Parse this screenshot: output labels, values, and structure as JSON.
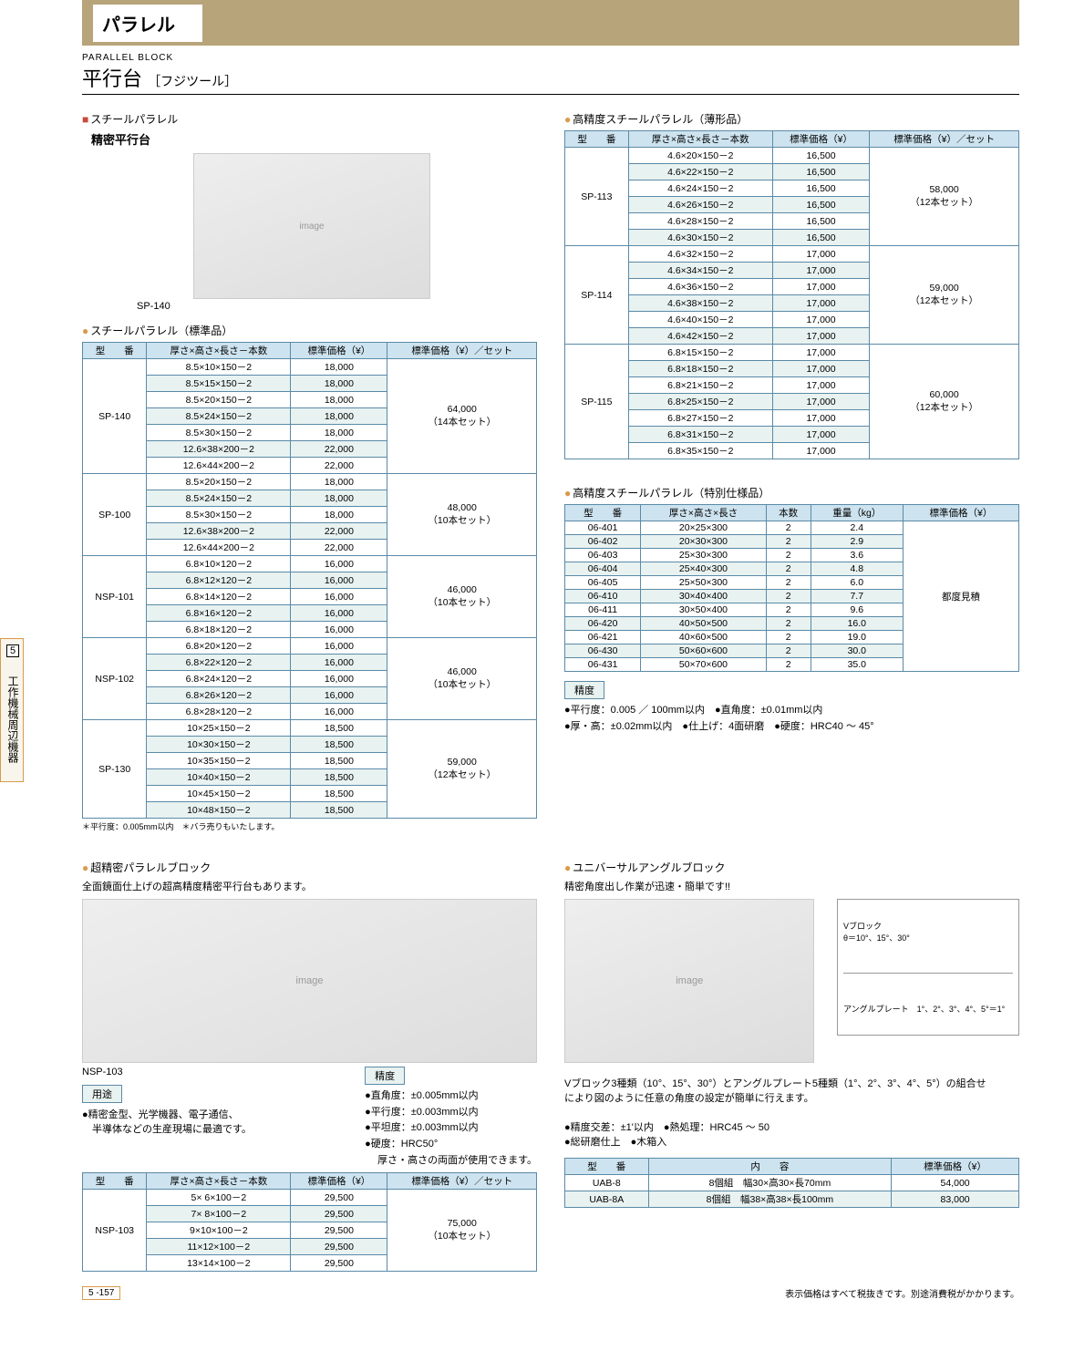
{
  "header": {
    "category": "パラレル"
  },
  "subtitle": {
    "en": "PARALLEL BLOCK",
    "jp": "平行台",
    "brand": "［フジツール］"
  },
  "sideTab": {
    "num": "5",
    "label": "工作機械周辺機器"
  },
  "footer": {
    "page": "5 -157",
    "note": "表示価格はすべて税抜きです。別途消費税がかかります。"
  },
  "steel": {
    "label": "スチールパラレル",
    "sub": "精密平行台",
    "imgCaption": "SP-140",
    "tableTitle": "スチールパラレル（標準品）",
    "headers": [
      "型　　番",
      "厚さ×高さ×長さ－本数",
      "標準価格（¥）",
      "標準価格（¥）／セット"
    ],
    "groups": [
      {
        "model": "SP-140",
        "set": "64,000",
        "setNote": "（14本セット）",
        "rows": [
          [
            "8.5×10×150－2",
            "18,000"
          ],
          [
            "8.5×15×150－2",
            "18,000"
          ],
          [
            "8.5×20×150－2",
            "18,000"
          ],
          [
            "8.5×24×150－2",
            "18,000"
          ],
          [
            "8.5×30×150－2",
            "18,000"
          ],
          [
            "12.6×38×200－2",
            "22,000"
          ],
          [
            "12.6×44×200－2",
            "22,000"
          ]
        ]
      },
      {
        "model": "SP-100",
        "set": "48,000",
        "setNote": "（10本セット）",
        "rows": [
          [
            "8.5×20×150－2",
            "18,000"
          ],
          [
            "8.5×24×150－2",
            "18,000"
          ],
          [
            "8.5×30×150－2",
            "18,000"
          ],
          [
            "12.6×38×200－2",
            "22,000"
          ],
          [
            "12.6×44×200－2",
            "22,000"
          ]
        ]
      },
      {
        "model": "NSP-101",
        "set": "46,000",
        "setNote": "（10本セット）",
        "rows": [
          [
            "6.8×10×120－2",
            "16,000"
          ],
          [
            "6.8×12×120－2",
            "16,000"
          ],
          [
            "6.8×14×120－2",
            "16,000"
          ],
          [
            "6.8×16×120－2",
            "16,000"
          ],
          [
            "6.8×18×120－2",
            "16,000"
          ]
        ]
      },
      {
        "model": "NSP-102",
        "set": "46,000",
        "setNote": "（10本セット）",
        "rows": [
          [
            "6.8×20×120－2",
            "16,000"
          ],
          [
            "6.8×22×120－2",
            "16,000"
          ],
          [
            "6.8×24×120－2",
            "16,000"
          ],
          [
            "6.8×26×120－2",
            "16,000"
          ],
          [
            "6.8×28×120－2",
            "16,000"
          ]
        ]
      },
      {
        "model": "SP-130",
        "set": "59,000",
        "setNote": "（12本セット）",
        "rows": [
          [
            "10×25×150－2",
            "18,500"
          ],
          [
            "10×30×150－2",
            "18,500"
          ],
          [
            "10×35×150－2",
            "18,500"
          ],
          [
            "10×40×150－2",
            "18,500"
          ],
          [
            "10×45×150－2",
            "18,500"
          ],
          [
            "10×48×150－2",
            "18,500"
          ]
        ]
      }
    ],
    "note": "＊平行度：0.005mm以内　＊バラ売りもいたします。"
  },
  "highPrec": {
    "title": "高精度スチールパラレル（薄形品）",
    "headers": [
      "型　　番",
      "厚さ×高さ×長さ－本数",
      "標準価格（¥）",
      "標準価格（¥）／セット"
    ],
    "groups": [
      {
        "model": "SP-113",
        "set": "58,000",
        "setNote": "（12本セット）",
        "rows": [
          [
            "4.6×20×150－2",
            "16,500"
          ],
          [
            "4.6×22×150－2",
            "16,500"
          ],
          [
            "4.6×24×150－2",
            "16,500"
          ],
          [
            "4.6×26×150－2",
            "16,500"
          ],
          [
            "4.6×28×150－2",
            "16,500"
          ],
          [
            "4.6×30×150－2",
            "16,500"
          ]
        ]
      },
      {
        "model": "SP-114",
        "set": "59,000",
        "setNote": "（12本セット）",
        "rows": [
          [
            "4.6×32×150－2",
            "17,000"
          ],
          [
            "4.6×34×150－2",
            "17,000"
          ],
          [
            "4.6×36×150－2",
            "17,000"
          ],
          [
            "4.6×38×150－2",
            "17,000"
          ],
          [
            "4.6×40×150－2",
            "17,000"
          ],
          [
            "4.6×42×150－2",
            "17,000"
          ]
        ]
      },
      {
        "model": "SP-115",
        "set": "60,000",
        "setNote": "（12本セット）",
        "rows": [
          [
            "6.8×15×150－2",
            "17,000"
          ],
          [
            "6.8×18×150－2",
            "17,000"
          ],
          [
            "6.8×21×150－2",
            "17,000"
          ],
          [
            "6.8×25×150－2",
            "17,000"
          ],
          [
            "6.8×27×150－2",
            "17,000"
          ],
          [
            "6.8×31×150－2",
            "17,000"
          ],
          [
            "6.8×35×150－2",
            "17,000"
          ]
        ]
      }
    ]
  },
  "special": {
    "title": "高精度スチールパラレル（特別仕様品）",
    "headers": [
      "型　　番",
      "厚さ×高さ×長さ",
      "本数",
      "重量（kg）",
      "標準価格（¥）"
    ],
    "rows": [
      [
        "06-401",
        "20×25×300",
        "2",
        "2.4"
      ],
      [
        "06-402",
        "20×30×300",
        "2",
        "2.9"
      ],
      [
        "06-403",
        "25×30×300",
        "2",
        "3.6"
      ],
      [
        "06-404",
        "25×40×300",
        "2",
        "4.8"
      ],
      [
        "06-405",
        "25×50×300",
        "2",
        "6.0"
      ],
      [
        "06-410",
        "30×40×400",
        "2",
        "7.7"
      ],
      [
        "06-411",
        "30×50×400",
        "2",
        "9.6"
      ],
      [
        "06-420",
        "40×50×500",
        "2",
        "16.0"
      ],
      [
        "06-421",
        "40×60×500",
        "2",
        "19.0"
      ],
      [
        "06-430",
        "50×60×600",
        "2",
        "30.0"
      ],
      [
        "06-431",
        "50×70×600",
        "2",
        "35.0"
      ]
    ],
    "priceNote": "都度見積",
    "precLabel": "精度",
    "specs": [
      "平行度：0.005 ／ 100mm以内　●直角度：±0.01mm以内",
      "厚・高：±0.02mm以内　●仕上げ：4面研磨　●硬度：HRC40 ～ 45°"
    ]
  },
  "ultra": {
    "title": "超精密パラレルブロック",
    "desc": "全面鏡面仕上げの超高精度精密平行台もあります。",
    "imgCaption": "NSP-103",
    "precLabel": "精度",
    "precSpecs": [
      "直角度：±0.005mm以内",
      "平行度：±0.003mm以内",
      "平坦度：±0.003mm以内",
      "硬度：HRC50°"
    ],
    "usageLabel": "用途",
    "usageText1": "●精密金型、光学機器、電子通信、",
    "usageText2": "　半導体などの生産現場に最適です。",
    "usageText3": "厚さ・高さの両面が使用できます。",
    "headers": [
      "型　　番",
      "厚さ×高さ×長さ－本数",
      "標準価格（¥）",
      "標準価格（¥）／セット"
    ],
    "model": "NSP-103",
    "set": "75,000",
    "setNote": "（10本セット）",
    "rows": [
      [
        "5× 6×100－2",
        "29,500"
      ],
      [
        "7× 8×100－2",
        "29,500"
      ],
      [
        "9×10×100－2",
        "29,500"
      ],
      [
        "11×12×100－2",
        "29,500"
      ],
      [
        "13×14×100－2",
        "29,500"
      ]
    ]
  },
  "uab": {
    "title": "ユニバーサルアングルブロック",
    "desc": "精密角度出し作業が迅速・簡単です!!",
    "diag": {
      "v": "Vブロック\nθ＝10°、15°、30°",
      "a": "アングルプレート　1°、2°、3°、4°、5°＝1°"
    },
    "note1": "Vブロック3種類（10°、15°、30°）とアングルプレート5種類（1°、2°、3°、4°、5°）の組合せ",
    "note2": "により図のように任意の角度の設定が簡単に行えます。",
    "specs": "●精度交差：±1'以内　●熱処理：HRC45 ～ 50",
    "specs2": "●総研磨仕上　●木箱入",
    "headers": [
      "型　　番",
      "内　　容",
      "標準価格（¥）"
    ],
    "rows": [
      [
        "UAB-8",
        "8個組　幅30×高30×長70mm",
        "54,000"
      ],
      [
        "UAB-8A",
        "8個組　幅38×高38×長100mm",
        "83,000"
      ]
    ]
  }
}
